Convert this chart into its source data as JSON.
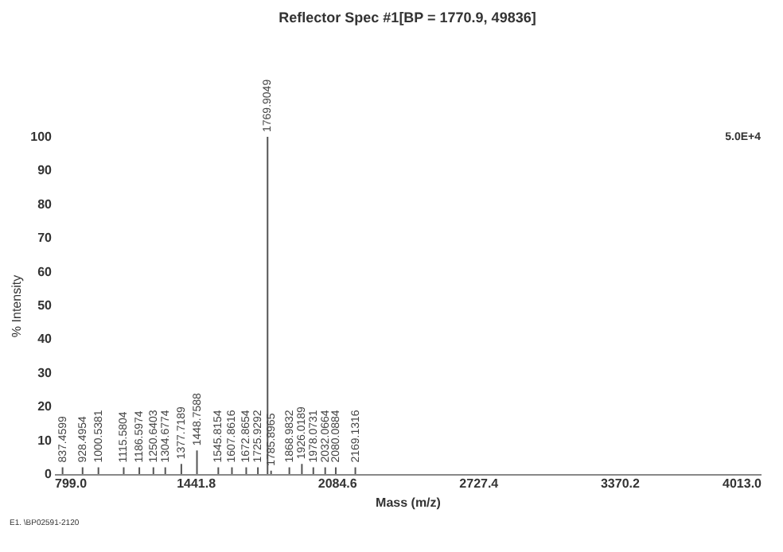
{
  "chart_data": {
    "type": "bar",
    "title": "Reflector Spec #1[BP = 1770.9, 49836]",
    "xlabel": "Mass (m/z)",
    "ylabel": "% Intensity",
    "x": [
      837.4599,
      928.4954,
      1000.5381,
      1115.5804,
      1186.5974,
      1250.6403,
      1304.6774,
      1377.7189,
      1448.7588,
      1545.8154,
      1607.8616,
      1672.8654,
      1725.9292,
      1769.9049,
      1785.8965,
      1868.9832,
      1926.0189,
      1978.0731,
      2032.0664,
      2080.0884,
      2169.1316
    ],
    "values": [
      2,
      2,
      2,
      2,
      2,
      2,
      2,
      3,
      7,
      2,
      2,
      2,
      2,
      100,
      1,
      2,
      3,
      2,
      2,
      2,
      2
    ],
    "color": "#555555",
    "xlim": [
      799.0,
      4013.0
    ],
    "xticks": [
      {
        "value": 799.0,
        "label": "799.0"
      },
      {
        "value": 1441.8,
        "label": "1441.8"
      },
      {
        "value": 2084.6,
        "label": "2084.6"
      },
      {
        "value": 2727.4,
        "label": "2727.4"
      },
      {
        "value": 3370.2,
        "label": "3370.2"
      },
      {
        "value": 4013.0,
        "label": "4013.0"
      }
    ],
    "ylim": [
      0,
      100
    ],
    "yticks": [
      0,
      10,
      20,
      30,
      40,
      50,
      60,
      70,
      80,
      90,
      100
    ],
    "annotations": [
      "5.0E+4",
      "E1. \\BP02591-2120",
      {
        "text": "837.4599",
        "x": 837.4599,
        "y": 2
      },
      {
        "text": "928.4954",
        "x": 928.4954,
        "y": 2
      },
      {
        "text": "1000.5381",
        "x": 1000.5381,
        "y": 2
      },
      {
        "text": "1115.5804",
        "x": 1115.5804,
        "y": 2
      },
      {
        "text": "1186.5974",
        "x": 1186.5974,
        "y": 2
      },
      {
        "text": "1250.6403",
        "x": 1250.6403,
        "y": 2
      },
      {
        "text": "1304.6774",
        "x": 1304.6774,
        "y": 2
      },
      {
        "text": "1377.7189",
        "x": 1377.7189,
        "y": 3
      },
      {
        "text": "1448.7588",
        "x": 1448.7588,
        "y": 7
      },
      {
        "text": "1545.8154",
        "x": 1545.8154,
        "y": 2
      },
      {
        "text": "1607.8616",
        "x": 1607.8616,
        "y": 2
      },
      {
        "text": "1672.8654",
        "x": 1672.8654,
        "y": 2
      },
      {
        "text": "1725.9292",
        "x": 1725.9292,
        "y": 2
      },
      {
        "text": "1769.9049",
        "x": 1769.9049,
        "y": 100
      },
      {
        "text": "1785.8965",
        "x": 1785.8965,
        "y": 1
      },
      {
        "text": "1868.9832",
        "x": 1868.9832,
        "y": 2
      },
      {
        "text": "1926.0189",
        "x": 1926.0189,
        "y": 3
      },
      {
        "text": "1978.0731",
        "x": 1978.0731,
        "y": 2
      },
      {
        "text": "2032.0664",
        "x": 2032.0664,
        "y": 2
      },
      {
        "text": "2080.0884",
        "x": 2080.0884,
        "y": 2
      },
      {
        "text": "2169.1316",
        "x": 2169.1316,
        "y": 2
      }
    ],
    "grid": false
  }
}
